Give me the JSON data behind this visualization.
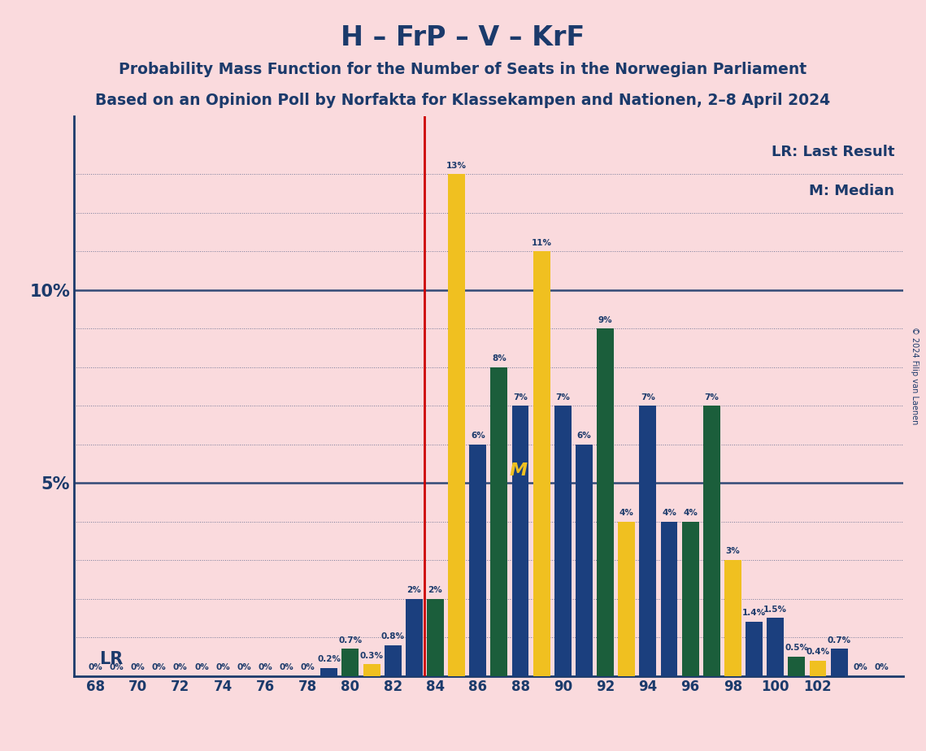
{
  "title": "H – FrP – V – KrF",
  "subtitle1": "Probability Mass Function for the Number of Seats in the Norwegian Parliament",
  "subtitle2": "Based on an Opinion Poll by Norfakta for Klassekampen and Nationen, 2–8 April 2024",
  "copyright": "© 2024 Filip van Laenen",
  "lr_label": "LR: Last Result",
  "m_label": "M: Median",
  "lr_line_x": 83.5,
  "background_color": "#FADADD",
  "bar_color_blue": "#1B3F7E",
  "bar_color_green": "#1B5E3B",
  "bar_color_yellow": "#F0C020",
  "title_color": "#1B3A6B",
  "lr_line_color": "#CC0000",
  "bar_data": [
    {
      "seat": 68,
      "val": 0.0,
      "color": "blue"
    },
    {
      "seat": 69,
      "val": 0.0,
      "color": "green"
    },
    {
      "seat": 70,
      "val": 0.0,
      "color": "blue"
    },
    {
      "seat": 71,
      "val": 0.0,
      "color": "green"
    },
    {
      "seat": 72,
      "val": 0.0,
      "color": "blue"
    },
    {
      "seat": 73,
      "val": 0.0,
      "color": "green"
    },
    {
      "seat": 74,
      "val": 0.0,
      "color": "blue"
    },
    {
      "seat": 75,
      "val": 0.0,
      "color": "green"
    },
    {
      "seat": 76,
      "val": 0.0,
      "color": "blue"
    },
    {
      "seat": 77,
      "val": 0.0,
      "color": "green"
    },
    {
      "seat": 78,
      "val": 0.0,
      "color": "blue"
    },
    {
      "seat": 79,
      "val": 0.2,
      "color": "blue"
    },
    {
      "seat": 80,
      "val": 0.7,
      "color": "green"
    },
    {
      "seat": 81,
      "val": 0.3,
      "color": "yellow"
    },
    {
      "seat": 82,
      "val": 0.8,
      "color": "blue"
    },
    {
      "seat": 83,
      "val": 2.0,
      "color": "blue"
    },
    {
      "seat": 84,
      "val": 2.0,
      "color": "green"
    },
    {
      "seat": 85,
      "val": 13.0,
      "color": "yellow"
    },
    {
      "seat": 86,
      "val": 6.0,
      "color": "blue"
    },
    {
      "seat": 87,
      "val": 8.0,
      "color": "green"
    },
    {
      "seat": 88,
      "val": 7.0,
      "color": "blue"
    },
    {
      "seat": 89,
      "val": 11.0,
      "color": "yellow"
    },
    {
      "seat": 90,
      "val": 7.0,
      "color": "blue"
    },
    {
      "seat": 91,
      "val": 6.0,
      "color": "blue"
    },
    {
      "seat": 92,
      "val": 9.0,
      "color": "green"
    },
    {
      "seat": 93,
      "val": 4.0,
      "color": "yellow"
    },
    {
      "seat": 94,
      "val": 7.0,
      "color": "blue"
    },
    {
      "seat": 95,
      "val": 4.0,
      "color": "blue"
    },
    {
      "seat": 96,
      "val": 4.0,
      "color": "green"
    },
    {
      "seat": 97,
      "val": 7.0,
      "color": "green"
    },
    {
      "seat": 98,
      "val": 3.0,
      "color": "yellow"
    },
    {
      "seat": 99,
      "val": 1.4,
      "color": "blue"
    },
    {
      "seat": 100,
      "val": 1.5,
      "color": "blue"
    },
    {
      "seat": 101,
      "val": 0.5,
      "color": "green"
    },
    {
      "seat": 102,
      "val": 0.4,
      "color": "yellow"
    },
    {
      "seat": 103,
      "val": 0.7,
      "color": "blue"
    },
    {
      "seat": 104,
      "val": 0.0,
      "color": "blue"
    },
    {
      "seat": 105,
      "val": 0.0,
      "color": "green"
    }
  ],
  "xtick_positions": [
    68,
    70,
    72,
    74,
    76,
    78,
    80,
    82,
    84,
    86,
    88,
    90,
    92,
    94,
    96,
    98,
    100,
    102
  ],
  "ylim": [
    0,
    14.5
  ],
  "grid_dotted": [
    1,
    2,
    3,
    4,
    6,
    7,
    8,
    9,
    11,
    12,
    13
  ],
  "grid_solid": [
    5,
    10
  ],
  "bar_width": 0.8
}
